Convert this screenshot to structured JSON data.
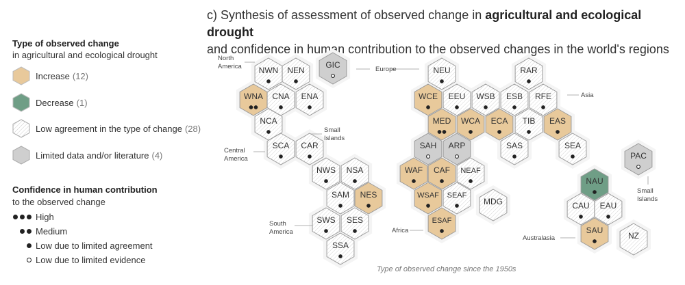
{
  "title": {
    "prefix": "c) Synthesis of assessment of observed change in ",
    "bold": "agricultural and ecological drought",
    "line2": "and confidence in human contribution to the observed changes in the world's regions"
  },
  "legend": {
    "type_heading": "Type of observed change",
    "type_sub": "in agricultural and ecological drought",
    "items": [
      {
        "label": "Increase",
        "count": "(12)",
        "color": "#e8c99b"
      },
      {
        "label": "Decrease",
        "count": "(1)",
        "color": "#6f9e86"
      },
      {
        "label": "Low agreement in the type of change",
        "count": "(28)",
        "color": "#ffffff"
      },
      {
        "label": "Limited data and/or literature",
        "count": "(4)",
        "color": "#cfcfcf"
      }
    ],
    "conf_heading": "Confidence in human contribution",
    "conf_sub": "to the observed change",
    "conf_items": [
      {
        "label": "High"
      },
      {
        "label": "Medium"
      },
      {
        "label": "Low due to limited agreement"
      },
      {
        "label": "Low due to limited evidence"
      }
    ]
  },
  "colors": {
    "increase": "#e8c99b",
    "decrease": "#6f9e86",
    "low_agreement": "#ffffff",
    "limited": "#cfcfcf"
  },
  "continent_labels": [
    "North America",
    "Europe",
    "Asia",
    "Small Islands",
    "Central America",
    "South America",
    "Africa",
    "Australasia",
    "Small Islands"
  ],
  "regions": [
    {
      "code": "NWN",
      "change": "low_agreement",
      "conf": "low_agreement"
    },
    {
      "code": "NEN",
      "change": "low_agreement",
      "conf": "low_agreement"
    },
    {
      "code": "GIC",
      "change": "limited",
      "conf": "low_evidence"
    },
    {
      "code": "WNA",
      "change": "increase",
      "conf": "medium"
    },
    {
      "code": "CNA",
      "change": "low_agreement",
      "conf": "low_agreement"
    },
    {
      "code": "ENA",
      "change": "low_agreement",
      "conf": "low_agreement"
    },
    {
      "code": "NCA",
      "change": "low_agreement",
      "conf": "low_agreement"
    },
    {
      "code": "SCA",
      "change": "low_agreement",
      "conf": "low_agreement"
    },
    {
      "code": "CAR",
      "change": "low_agreement",
      "conf": "low_agreement"
    },
    {
      "code": "NWS",
      "change": "low_agreement",
      "conf": "low_agreement"
    },
    {
      "code": "NSA",
      "change": "low_agreement",
      "conf": "low_agreement"
    },
    {
      "code": "SAM",
      "change": "low_agreement",
      "conf": "low_agreement"
    },
    {
      "code": "NES",
      "change": "increase",
      "conf": "low_agreement"
    },
    {
      "code": "SWS",
      "change": "low_agreement",
      "conf": "low_agreement"
    },
    {
      "code": "SES",
      "change": "low_agreement",
      "conf": "low_agreement"
    },
    {
      "code": "SSA",
      "change": "low_agreement",
      "conf": "low_agreement"
    },
    {
      "code": "NEU",
      "change": "low_agreement",
      "conf": "low_agreement"
    },
    {
      "code": "RAR",
      "change": "low_agreement",
      "conf": "low_agreement"
    },
    {
      "code": "WCE",
      "change": "increase",
      "conf": "low_agreement"
    },
    {
      "code": "EEU",
      "change": "low_agreement",
      "conf": "low_agreement"
    },
    {
      "code": "WSB",
      "change": "low_agreement",
      "conf": "low_agreement"
    },
    {
      "code": "ESB",
      "change": "low_agreement",
      "conf": "low_agreement"
    },
    {
      "code": "RFE",
      "change": "low_agreement",
      "conf": "low_agreement"
    },
    {
      "code": "MED",
      "change": "increase",
      "conf": "medium"
    },
    {
      "code": "WCA",
      "change": "increase",
      "conf": "low_agreement"
    },
    {
      "code": "ECA",
      "change": "increase",
      "conf": "low_agreement"
    },
    {
      "code": "TIB",
      "change": "low_agreement",
      "conf": "low_agreement"
    },
    {
      "code": "EAS",
      "change": "increase",
      "conf": "low_agreement"
    },
    {
      "code": "SAH",
      "change": "limited",
      "conf": "low_evidence"
    },
    {
      "code": "ARP",
      "change": "limited",
      "conf": "low_evidence"
    },
    {
      "code": "SAS",
      "change": "low_agreement",
      "conf": "low_agreement"
    },
    {
      "code": "SEA",
      "change": "low_agreement",
      "conf": "low_agreement"
    },
    {
      "code": "PAC",
      "change": "limited",
      "conf": "low_evidence"
    },
    {
      "code": "WAF",
      "change": "increase",
      "conf": "low_agreement"
    },
    {
      "code": "CAF",
      "change": "increase",
      "conf": "low_agreement"
    },
    {
      "code": "NEAF",
      "change": "low_agreement",
      "conf": "low_agreement"
    },
    {
      "code": "NAU",
      "change": "decrease",
      "conf": "low_agreement"
    },
    {
      "code": "WSAF",
      "change": "increase",
      "conf": "low_agreement"
    },
    {
      "code": "SEAF",
      "change": "low_agreement",
      "conf": "low_agreement"
    },
    {
      "code": "MDG",
      "change": "low_agreement",
      "conf": "none"
    },
    {
      "code": "CAU",
      "change": "low_agreement",
      "conf": "low_agreement"
    },
    {
      "code": "EAU",
      "change": "low_agreement",
      "conf": "low_agreement"
    },
    {
      "code": "ESAF",
      "change": "increase",
      "conf": "low_agreement"
    },
    {
      "code": "SAU",
      "change": "increase",
      "conf": "low_agreement"
    },
    {
      "code": "NZ",
      "change": "low_agreement",
      "conf": "none"
    }
  ],
  "caption": "Type of observed change since the 1950s"
}
